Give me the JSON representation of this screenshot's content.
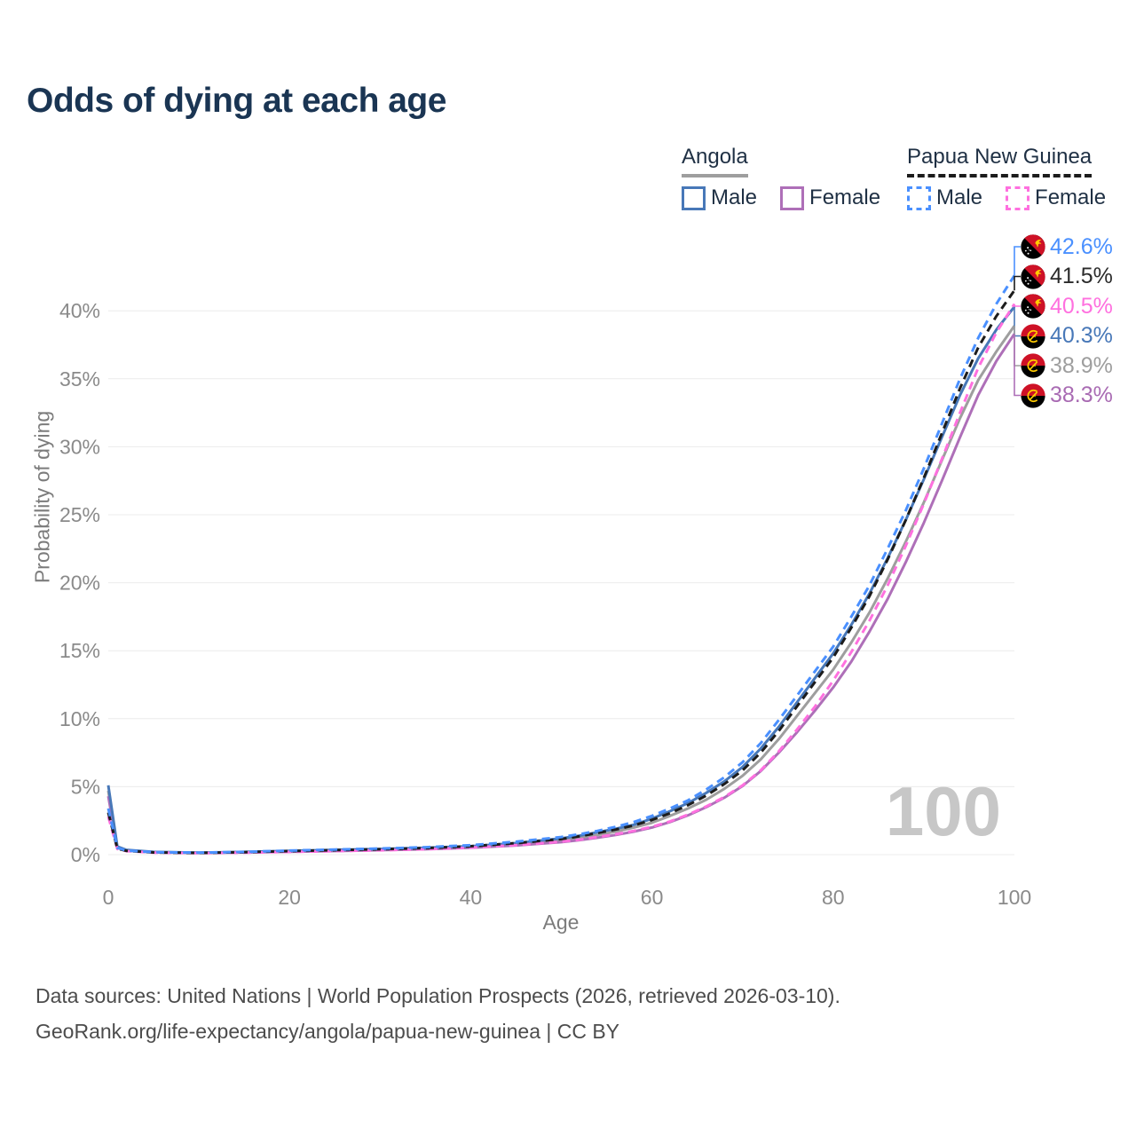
{
  "title": "Odds of dying at each age",
  "legend": {
    "groups": [
      {
        "name": "Angola",
        "line": "solid",
        "underline_color": "#9e9e9e",
        "items": [
          {
            "label": "Male",
            "color": "#4878b8"
          },
          {
            "label": "Female",
            "color": "#ae6fb8"
          }
        ]
      },
      {
        "name": "Papua New Guinea",
        "line": "dashed",
        "underline_color": "#1c1c1c",
        "items": [
          {
            "label": "Male",
            "color": "#4a90ff"
          },
          {
            "label": "Female",
            "color": "#ff70df"
          }
        ]
      }
    ]
  },
  "chart_data": {
    "type": "line",
    "title": "Odds of dying at each age",
    "xlabel": "Age",
    "ylabel": "Probability of dying",
    "xlim": [
      0,
      100
    ],
    "ylim": [
      0,
      45
    ],
    "grid": "horizontal",
    "legend_position": "top-right",
    "watermark": "100",
    "x_ticks": [
      0,
      20,
      40,
      60,
      80,
      100
    ],
    "y_ticks": {
      "labels": [
        "0%",
        "5%",
        "10%",
        "15%",
        "20%",
        "25%",
        "30%",
        "35%",
        "40%"
      ],
      "values": [
        0,
        5,
        10,
        15,
        20,
        25,
        30,
        35,
        40
      ]
    },
    "ages": [
      0,
      1,
      2,
      5,
      10,
      15,
      20,
      25,
      30,
      35,
      40,
      45,
      50,
      52,
      54,
      56,
      58,
      60,
      62,
      64,
      66,
      68,
      70,
      72,
      74,
      76,
      78,
      80,
      82,
      84,
      86,
      88,
      90,
      92,
      94,
      96,
      98,
      100
    ],
    "series": [
      {
        "name": "Angola Both sexes",
        "country": "Angola",
        "sex": "Both",
        "line": "solid",
        "color": "#9e9e9e",
        "end_label": "38.9%",
        "values": [
          4.7,
          0.55,
          0.32,
          0.18,
          0.14,
          0.18,
          0.25,
          0.32,
          0.38,
          0.46,
          0.58,
          0.78,
          1.05,
          1.25,
          1.45,
          1.7,
          2.0,
          2.35,
          2.85,
          3.4,
          4.05,
          4.85,
          5.8,
          7.0,
          8.5,
          10.2,
          11.9,
          13.6,
          15.6,
          17.8,
          20.3,
          23.0,
          25.9,
          29.0,
          32.1,
          34.9,
          37.0,
          38.9
        ]
      },
      {
        "name": "Angola Female",
        "country": "Angola",
        "sex": "Female",
        "line": "solid",
        "color": "#ae6fb8",
        "end_label": "38.3%",
        "values": [
          4.3,
          0.5,
          0.3,
          0.17,
          0.13,
          0.16,
          0.21,
          0.27,
          0.33,
          0.4,
          0.5,
          0.68,
          0.92,
          1.07,
          1.25,
          1.45,
          1.7,
          2.0,
          2.4,
          2.9,
          3.5,
          4.2,
          5.05,
          6.15,
          7.5,
          9.0,
          10.6,
          12.3,
          14.2,
          16.4,
          18.8,
          21.5,
          24.4,
          27.5,
          30.7,
          33.8,
          36.3,
          38.3
        ]
      },
      {
        "name": "Angola Male",
        "country": "Angola",
        "sex": "Male",
        "line": "solid",
        "color": "#4878b8",
        "end_label": "40.3%",
        "values": [
          5.1,
          0.6,
          0.35,
          0.2,
          0.15,
          0.2,
          0.28,
          0.35,
          0.42,
          0.5,
          0.62,
          0.85,
          1.2,
          1.4,
          1.65,
          1.9,
          2.2,
          2.65,
          3.2,
          3.8,
          4.55,
          5.4,
          6.45,
          7.8,
          9.4,
          11.2,
          13.0,
          14.8,
          16.9,
          19.2,
          21.8,
          24.6,
          27.6,
          30.7,
          33.8,
          36.5,
          38.6,
          40.3
        ]
      },
      {
        "name": "Papua New Guinea Female",
        "country": "Papua New Guinea",
        "sex": "Female",
        "line": "dashed",
        "color": "#ff70df",
        "end_label": "40.5%",
        "values": [
          2.8,
          0.42,
          0.26,
          0.15,
          0.12,
          0.15,
          0.2,
          0.26,
          0.32,
          0.4,
          0.52,
          0.7,
          0.95,
          1.1,
          1.3,
          1.5,
          1.75,
          2.05,
          2.45,
          2.95,
          3.55,
          4.25,
          5.1,
          6.2,
          7.6,
          9.2,
          10.9,
          12.8,
          14.9,
          17.2,
          19.8,
          22.7,
          25.8,
          29.1,
          32.5,
          35.8,
          38.4,
          40.5
        ]
      },
      {
        "name": "Papua New Guinea Both sexes",
        "country": "Papua New Guinea",
        "sex": "Both",
        "line": "dashed",
        "color": "#1c1c1c",
        "end_label": "41.5%",
        "values": [
          3.1,
          0.45,
          0.28,
          0.16,
          0.13,
          0.18,
          0.26,
          0.33,
          0.4,
          0.48,
          0.62,
          0.85,
          1.15,
          1.35,
          1.6,
          1.85,
          2.15,
          2.55,
          3.05,
          3.65,
          4.35,
          5.2,
          6.2,
          7.5,
          9.1,
          10.9,
          12.7,
          14.5,
          16.7,
          19.0,
          21.7,
          24.6,
          27.7,
          31.0,
          34.3,
          37.3,
          39.6,
          41.5
        ]
      },
      {
        "name": "Papua New Guinea Male",
        "country": "Papua New Guinea",
        "sex": "Male",
        "line": "dashed",
        "color": "#4a90ff",
        "end_label": "42.6%",
        "values": [
          3.4,
          0.5,
          0.3,
          0.18,
          0.15,
          0.2,
          0.3,
          0.38,
          0.45,
          0.55,
          0.7,
          0.95,
          1.3,
          1.5,
          1.75,
          2.05,
          2.4,
          2.85,
          3.4,
          4.0,
          4.8,
          5.7,
          6.8,
          8.2,
          9.9,
          11.7,
          13.5,
          15.3,
          17.5,
          19.8,
          22.5,
          25.3,
          28.4,
          31.7,
          35.0,
          38.0,
          40.5,
          42.6
        ]
      }
    ],
    "end_labels": [
      {
        "text": "42.6%",
        "color": "#4a90ff",
        "series": "Papua New Guinea Male",
        "country": "Papua New Guinea"
      },
      {
        "text": "41.5%",
        "color": "#2b2b2b",
        "series": "Papua New Guinea Both sexes",
        "country": "Papua New Guinea"
      },
      {
        "text": "40.5%",
        "color": "#ff70df",
        "series": "Papua New Guinea Female",
        "country": "Papua New Guinea"
      },
      {
        "text": "40.3%",
        "color": "#4878b8",
        "series": "Angola Male",
        "country": "Angola"
      },
      {
        "text": "38.9%",
        "color": "#9e9e9e",
        "series": "Angola Both sexes",
        "country": "Angola"
      },
      {
        "text": "38.3%",
        "color": "#a96bb3",
        "series": "Angola Female",
        "country": "Angola"
      }
    ]
  },
  "footer": {
    "line1": "Data sources: United Nations | World Population Prospects (2026, retrieved 2026-03-10).",
    "line2": "GeoRank.org/life-expectancy/angola/papua-new-guinea | CC BY"
  }
}
